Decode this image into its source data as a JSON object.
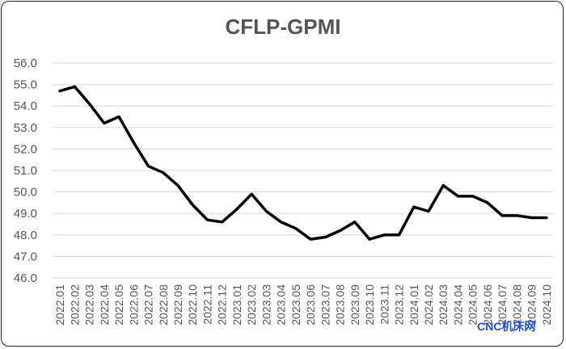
{
  "chart_data": {
    "type": "line",
    "title": "CFLP-GPMI",
    "xlabel": "",
    "ylabel": "",
    "ylim": [
      46.0,
      56.0
    ],
    "yticks": [
      "46.0",
      "47.0",
      "48.0",
      "49.0",
      "50.0",
      "51.0",
      "52.0",
      "53.0",
      "54.0",
      "55.0",
      "56.0"
    ],
    "grid": true,
    "legend": "none",
    "categories": [
      "2022.01",
      "2022.02",
      "2022.03",
      "2022.04",
      "2022.05",
      "2022.06",
      "2022.07",
      "2022.08",
      "2022.09",
      "2022.10",
      "2022.11",
      "2022.12",
      "2023.01",
      "2023.02",
      "2023.03",
      "2023.04",
      "2023.05",
      "2023.06",
      "2023.07",
      "2023.08",
      "2023.09",
      "2023.10",
      "2023.11",
      "2023.12",
      "2024.01",
      "2024.02",
      "2024.03",
      "2024.04",
      "2024.05",
      "2024.06",
      "2024.07",
      "2024.08",
      "2024.09",
      "2024.10"
    ],
    "series": [
      {
        "values": [
          54.7,
          54.9,
          54.1,
          53.2,
          53.5,
          52.3,
          51.2,
          50.9,
          50.3,
          49.4,
          48.7,
          48.6,
          49.2,
          49.9,
          49.1,
          48.6,
          48.3,
          47.8,
          47.9,
          48.2,
          48.6,
          47.8,
          48.0,
          48.0,
          49.3,
          49.1,
          50.3,
          49.8,
          49.8,
          49.5,
          48.9,
          48.9,
          48.8,
          48.8
        ],
        "color": "#000000"
      }
    ]
  },
  "watermark": "CNC机床网"
}
